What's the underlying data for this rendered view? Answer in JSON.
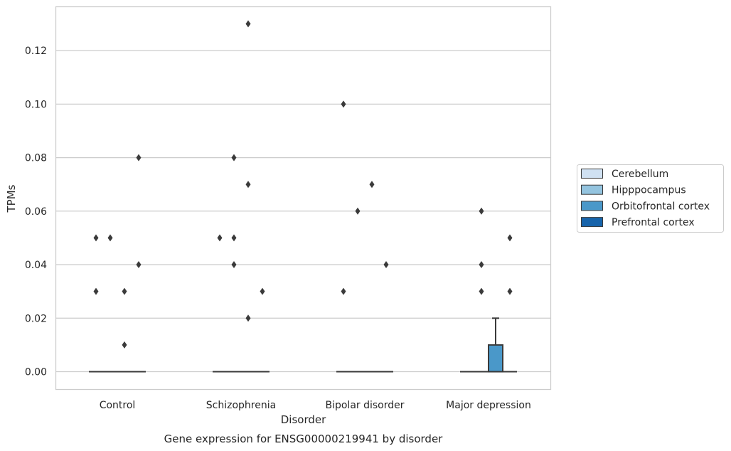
{
  "chart_data": {
    "type": "box",
    "caption": "Gene expression for ENSG00000219941 by disorder",
    "xlabel": "Disorder",
    "ylabel": "TPMs",
    "ylim": [
      -0.0065,
      0.1365
    ],
    "yticks": [
      0.0,
      0.02,
      0.04,
      0.06,
      0.08,
      0.1,
      0.12
    ],
    "ytick_labels": [
      "0.00",
      "0.02",
      "0.04",
      "0.06",
      "0.08",
      "0.10",
      "0.12"
    ],
    "grid": "horizontal",
    "legend_position": "right",
    "categories": [
      "Control",
      "Schizophrenia",
      "Bipolar disorder",
      "Major depression"
    ],
    "series": [
      {
        "name": "Cerebellum",
        "color": "#d0e1f2",
        "boxes": [
          {
            "q1": 0,
            "median": 0,
            "q3": 0,
            "whisker_low": 0,
            "whisker_high": 0,
            "outliers": [
              0.05,
              0.03
            ]
          },
          {
            "q1": 0,
            "median": 0,
            "q3": 0,
            "whisker_low": 0,
            "whisker_high": 0,
            "outliers": [
              0.05
            ]
          },
          {
            "q1": 0,
            "median": 0,
            "q3": 0,
            "whisker_low": 0,
            "whisker_high": 0,
            "outliers": [
              0.1,
              0.03
            ]
          },
          {
            "q1": 0,
            "median": 0,
            "q3": 0,
            "whisker_low": 0,
            "whisker_high": 0,
            "outliers": []
          }
        ]
      },
      {
        "name": "Hipppocampus",
        "color": "#94c4df",
        "boxes": [
          {
            "q1": 0,
            "median": 0,
            "q3": 0,
            "whisker_low": 0,
            "whisker_high": 0,
            "outliers": [
              0.05
            ]
          },
          {
            "q1": 0,
            "median": 0,
            "q3": 0,
            "whisker_low": 0,
            "whisker_high": 0,
            "outliers": [
              0.08,
              0.05,
              0.04
            ]
          },
          {
            "q1": 0,
            "median": 0,
            "q3": 0,
            "whisker_low": 0,
            "whisker_high": 0,
            "outliers": [
              0.06
            ]
          },
          {
            "q1": 0,
            "median": 0,
            "q3": 0,
            "whisker_low": 0,
            "whisker_high": 0,
            "outliers": [
              0.06,
              0.04,
              0.03
            ]
          }
        ]
      },
      {
        "name": "Orbitofrontal cortex",
        "color": "#4a98c9",
        "boxes": [
          {
            "q1": 0,
            "median": 0,
            "q3": 0,
            "whisker_low": 0,
            "whisker_high": 0,
            "outliers": [
              0.03,
              0.01
            ]
          },
          {
            "q1": 0,
            "median": 0,
            "q3": 0,
            "whisker_low": 0,
            "whisker_high": 0,
            "outliers": [
              0.13,
              0.07,
              0.02
            ]
          },
          {
            "q1": 0,
            "median": 0,
            "q3": 0,
            "whisker_low": 0,
            "whisker_high": 0,
            "outliers": [
              0.07
            ]
          },
          {
            "q1": 0,
            "median": 0,
            "q3": 0.01,
            "whisker_low": 0,
            "whisker_high": 0.02,
            "outliers": []
          }
        ]
      },
      {
        "name": "Prefrontal cortex",
        "color": "#1764ab",
        "boxes": [
          {
            "q1": 0,
            "median": 0,
            "q3": 0,
            "whisker_low": 0,
            "whisker_high": 0,
            "outliers": [
              0.08,
              0.04
            ]
          },
          {
            "q1": 0,
            "median": 0,
            "q3": 0,
            "whisker_low": 0,
            "whisker_high": 0,
            "outliers": [
              0.03
            ]
          },
          {
            "q1": 0,
            "median": 0,
            "q3": 0,
            "whisker_low": 0,
            "whisker_high": 0,
            "outliers": [
              0.04
            ]
          },
          {
            "q1": 0,
            "median": 0,
            "q3": 0,
            "whisker_low": 0,
            "whisker_high": 0,
            "outliers": [
              0.05,
              0.03
            ]
          }
        ]
      }
    ]
  }
}
